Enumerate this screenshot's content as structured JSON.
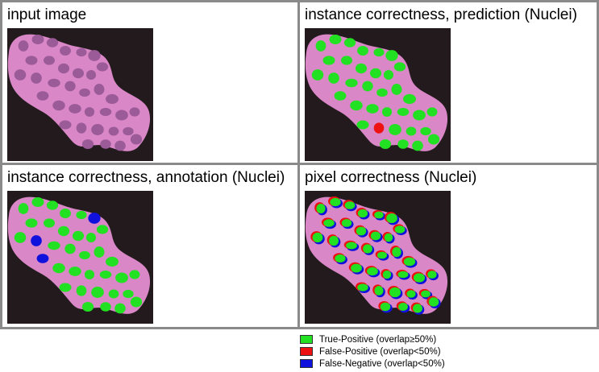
{
  "panels": [
    {
      "title": "input image"
    },
    {
      "title": "instance correctness, prediction (Nuclei)"
    },
    {
      "title": "instance correctness, annotation (Nuclei)"
    },
    {
      "title": "pixel correctness (Nuclei)"
    }
  ],
  "legend": {
    "items": [
      {
        "label": "True-Positive (overlap≥50%)",
        "color": "#22e022"
      },
      {
        "label": "False-Positive (overlap<50%)",
        "color": "#ee1111"
      },
      {
        "label": "False-Negative (overlap<50%)",
        "color": "#1111dd"
      }
    ]
  },
  "colors": {
    "tissue": "#d987c7",
    "background": "#221a1c",
    "nucleus_raw": "#9b5a98"
  }
}
